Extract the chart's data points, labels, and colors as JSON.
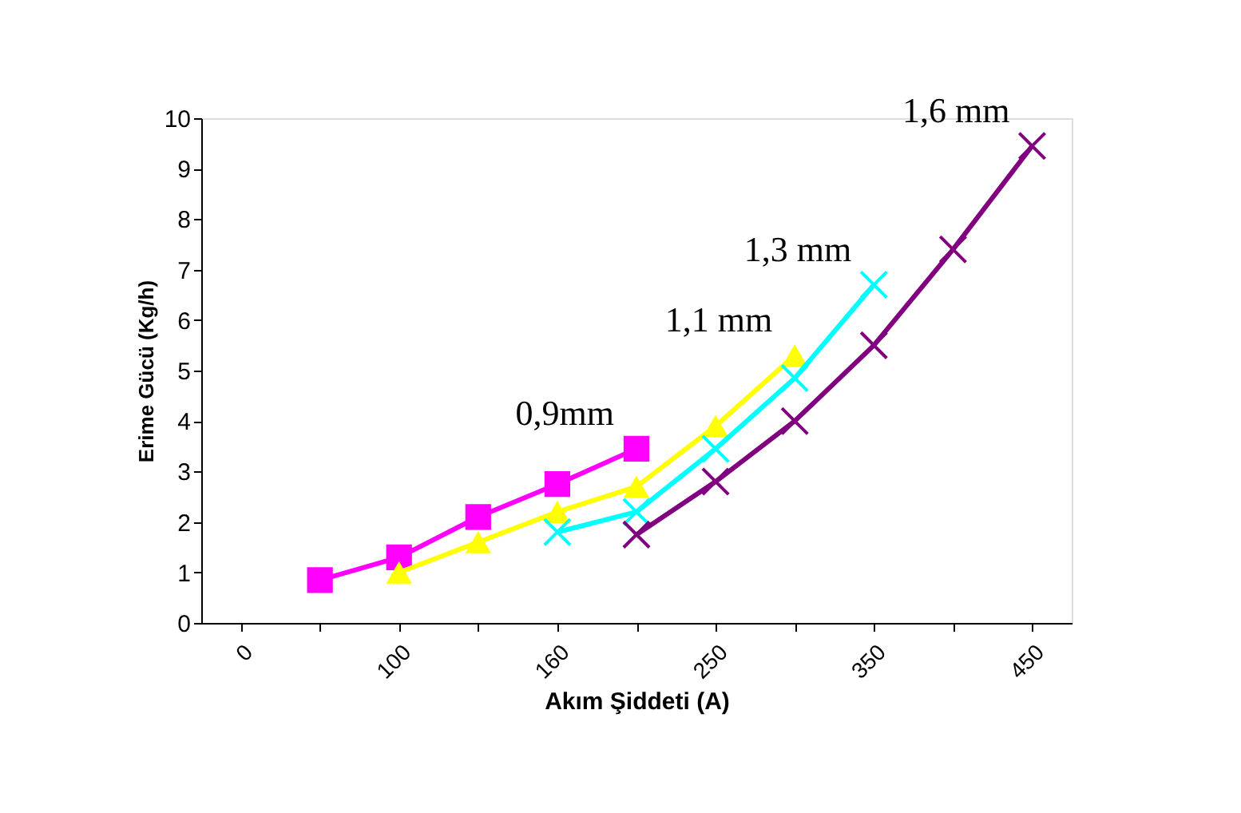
{
  "chart_data": {
    "type": "line",
    "xlabel": "Akım Şiddeti (A)",
    "ylabel": "Erime Gücü (Kg/h)",
    "categories": [
      "0",
      null,
      "100",
      null,
      "160",
      null,
      "250",
      null,
      "350",
      null,
      "450"
    ],
    "series": [
      {
        "name": "0,9mm",
        "color": "#ff00ff",
        "marker": "square",
        "values": [
          null,
          0.85,
          1.3,
          2.1,
          2.75,
          3.45,
          null,
          null,
          null,
          null,
          null
        ]
      },
      {
        "name": "1,1 mm",
        "color": "#ffff00",
        "marker": "triangle",
        "values": [
          null,
          null,
          1.0,
          1.6,
          2.2,
          2.7,
          3.9,
          5.3,
          null,
          null,
          null
        ]
      },
      {
        "name": "1,3 mm",
        "color": "#00ffff",
        "marker": "cross",
        "values": [
          null,
          null,
          null,
          null,
          1.8,
          2.2,
          3.45,
          4.85,
          6.7,
          null,
          null
        ]
      },
      {
        "name": "1,6 mm",
        "color": "#800080",
        "marker": "cross",
        "values": [
          null,
          null,
          null,
          null,
          null,
          1.75,
          2.8,
          4.0,
          5.5,
          7.4,
          9.45
        ]
      }
    ],
    "ylim": [
      0,
      10
    ],
    "yticks": [
      0,
      1,
      2,
      3,
      4,
      5,
      6,
      7,
      8,
      9,
      10
    ],
    "grid": false
  }
}
